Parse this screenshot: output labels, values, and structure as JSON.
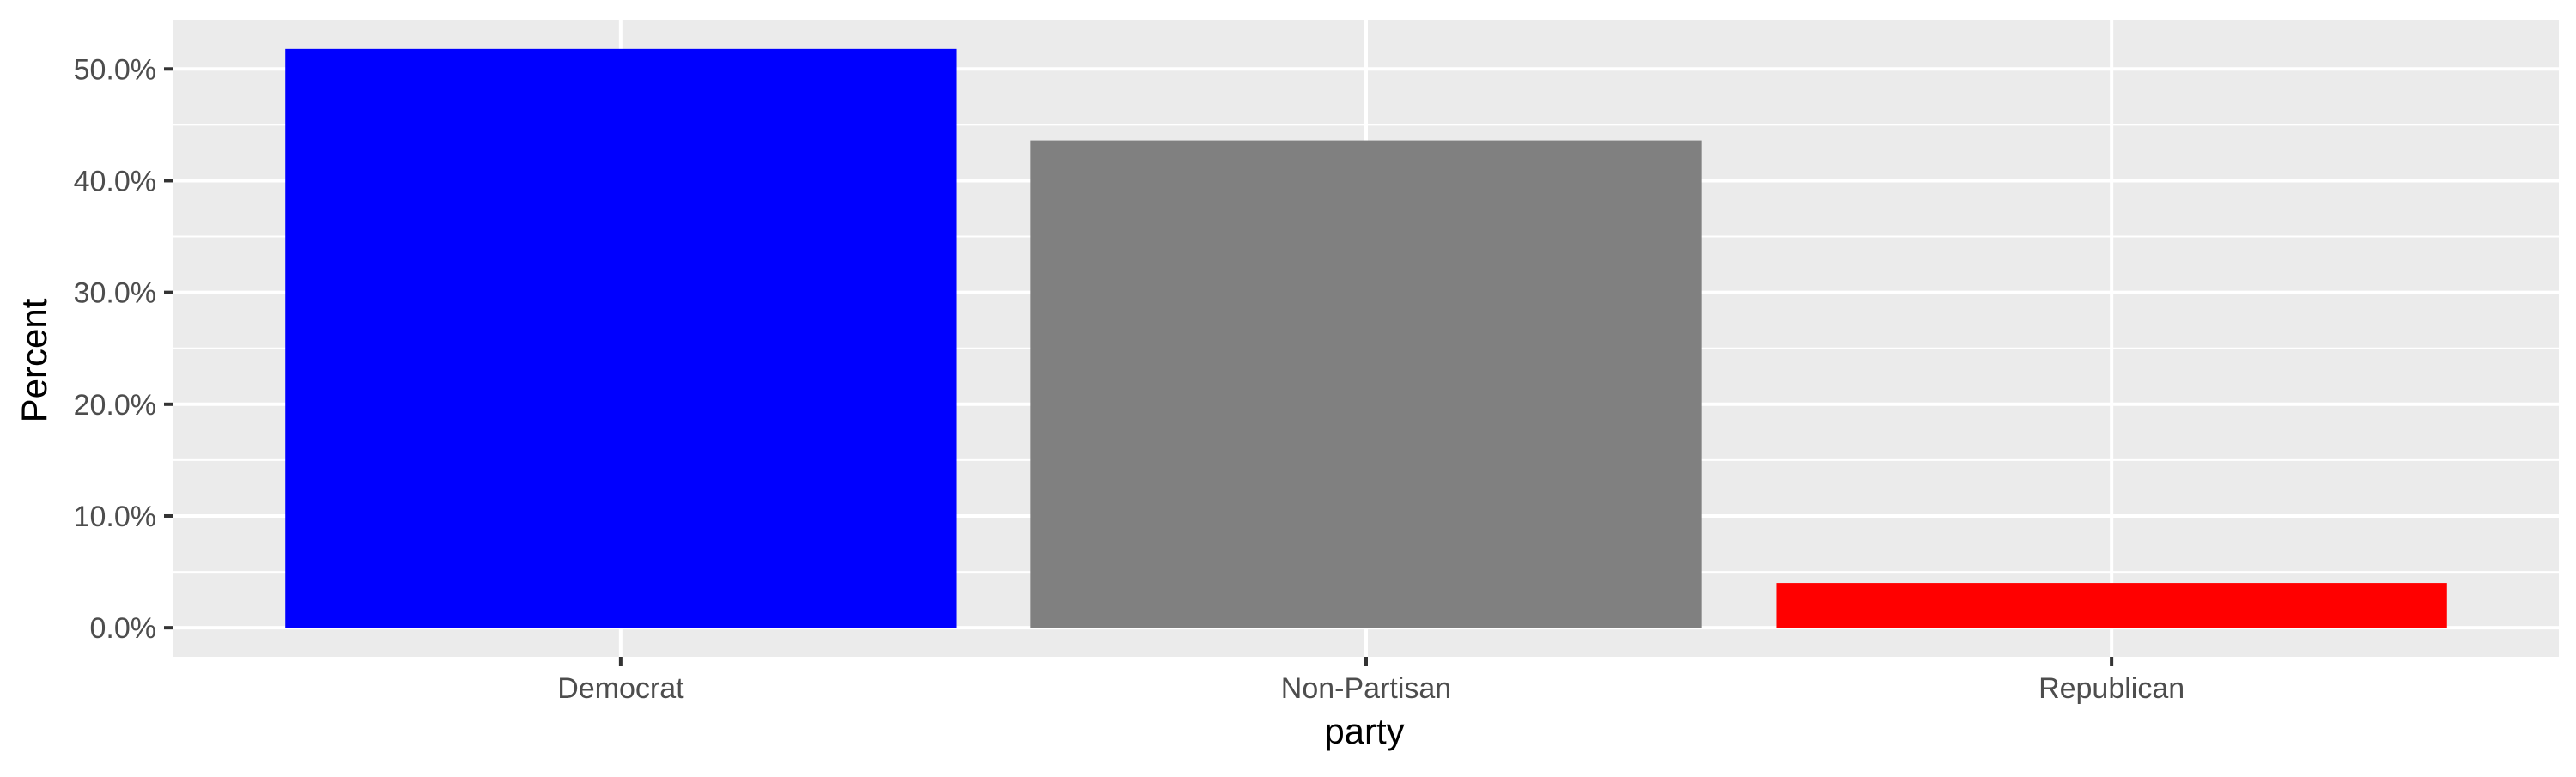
{
  "chart_data": {
    "type": "bar",
    "title": "",
    "xlabel": "party",
    "ylabel": "Percent",
    "categories": [
      "Democrat",
      "Non-Partisan",
      "Republican"
    ],
    "values": [
      51.8,
      43.6,
      4.0
    ],
    "bar_colors": [
      "#0000FF",
      "#808080",
      "#FF0000"
    ],
    "ylim": [
      -2.6,
      54.4
    ],
    "y_ticks": [
      0,
      10,
      20,
      30,
      40,
      50
    ],
    "y_tick_labels": [
      "0.0%",
      "10.0%",
      "20.0%",
      "30.0%",
      "40.0%",
      "50.0%"
    ],
    "grid": true,
    "panel_background": "#EBEBEB",
    "grid_color": "#FFFFFF"
  }
}
